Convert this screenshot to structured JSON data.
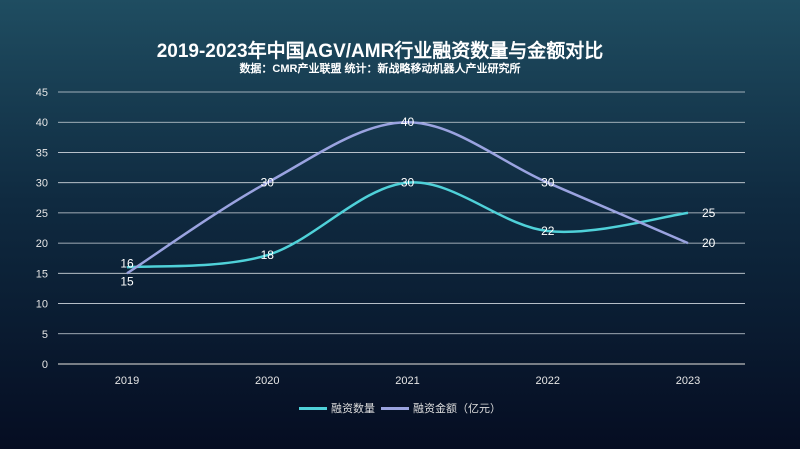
{
  "chart_data": {
    "type": "line",
    "title": "2019-2023年中国AGV/AMR行业融资数量与金额对比",
    "subtitle": "数据：CMR产业联盟    统计：新战略移动机器人产业研究所",
    "categories": [
      "2019",
      "2020",
      "2021",
      "2022",
      "2023"
    ],
    "ylim": [
      0,
      45
    ],
    "yticks": [
      0,
      5,
      10,
      15,
      20,
      25,
      30,
      35,
      40,
      45
    ],
    "grid": true,
    "smooth": true,
    "legend_position": "bottom",
    "series": [
      {
        "name": "融资数量",
        "values": [
          16,
          18,
          30,
          22,
          25
        ],
        "color": "#4fd1d9"
      },
      {
        "name": "融资金额（亿元）",
        "values": [
          15,
          30,
          40,
          30,
          20
        ],
        "color": "#9aa3e0"
      }
    ]
  }
}
